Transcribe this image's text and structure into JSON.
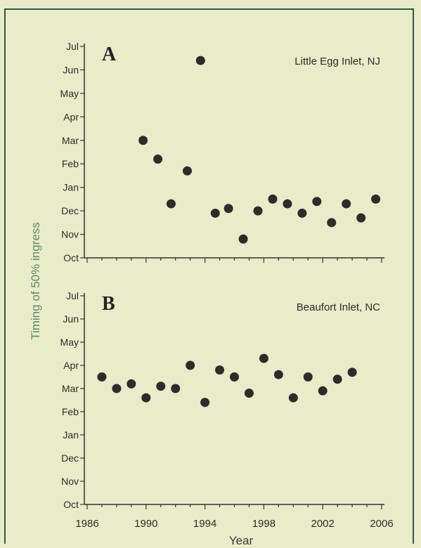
{
  "ylabel": "Timing of 50% ingress",
  "xlabel": "Year",
  "chart_data": [
    {
      "type": "scatter",
      "panel": "A",
      "title": "Little Egg Inlet, NJ",
      "xlim": [
        1986,
        2006
      ],
      "x_ticks": [
        "1986",
        "1990",
        "1994",
        "1998",
        "2002",
        "2006"
      ],
      "y_categories": [
        "Oct",
        "Nov",
        "Dec",
        "Jan",
        "Feb",
        "Mar",
        "Apr",
        "May",
        "Jun",
        "Jul"
      ],
      "ylim_index": [
        0,
        9
      ],
      "y_unit": "months after Oct 1 (Oct = 0)",
      "points": [
        {
          "x": 1989.8,
          "y": 5.0
        },
        {
          "x": 1990.8,
          "y": 4.2
        },
        {
          "x": 1991.7,
          "y": 2.3
        },
        {
          "x": 1992.8,
          "y": 3.7
        },
        {
          "x": 1993.7,
          "y": 8.4
        },
        {
          "x": 1994.7,
          "y": 1.9
        },
        {
          "x": 1995.6,
          "y": 2.1
        },
        {
          "x": 1996.6,
          "y": 0.8
        },
        {
          "x": 1997.6,
          "y": 2.0
        },
        {
          "x": 1998.6,
          "y": 2.5
        },
        {
          "x": 1999.6,
          "y": 2.3
        },
        {
          "x": 2000.6,
          "y": 1.9
        },
        {
          "x": 2001.6,
          "y": 2.4
        },
        {
          "x": 2002.6,
          "y": 1.5
        },
        {
          "x": 2003.6,
          "y": 2.3
        },
        {
          "x": 2004.6,
          "y": 1.7
        },
        {
          "x": 2005.6,
          "y": 2.5
        }
      ]
    },
    {
      "type": "scatter",
      "panel": "B",
      "title": "Beaufort Inlet, NC",
      "xlim": [
        1986,
        2006
      ],
      "x_ticks": [
        "1986",
        "1990",
        "1994",
        "1998",
        "2002",
        "2006"
      ],
      "y_categories": [
        "Oct",
        "Nov",
        "Dec",
        "Jan",
        "Feb",
        "Mar",
        "Apr",
        "May",
        "Jun",
        "Jul"
      ],
      "ylim_index": [
        0,
        9
      ],
      "y_unit": "months after Oct 1 (Oct = 0)",
      "points": [
        {
          "x": 1987.0,
          "y": 5.5
        },
        {
          "x": 1988.0,
          "y": 5.0
        },
        {
          "x": 1989.0,
          "y": 5.2
        },
        {
          "x": 1990.0,
          "y": 4.6
        },
        {
          "x": 1991.0,
          "y": 5.1
        },
        {
          "x": 1992.0,
          "y": 5.0
        },
        {
          "x": 1993.0,
          "y": 6.0
        },
        {
          "x": 1994.0,
          "y": 4.4
        },
        {
          "x": 1995.0,
          "y": 5.8
        },
        {
          "x": 1996.0,
          "y": 5.5
        },
        {
          "x": 1997.0,
          "y": 4.8
        },
        {
          "x": 1998.0,
          "y": 6.3
        },
        {
          "x": 1999.0,
          "y": 5.6
        },
        {
          "x": 2000.0,
          "y": 4.6
        },
        {
          "x": 2001.0,
          "y": 5.5
        },
        {
          "x": 2002.0,
          "y": 4.9
        },
        {
          "x": 2003.0,
          "y": 5.4
        },
        {
          "x": 2004.0,
          "y": 5.7
        }
      ]
    }
  ]
}
